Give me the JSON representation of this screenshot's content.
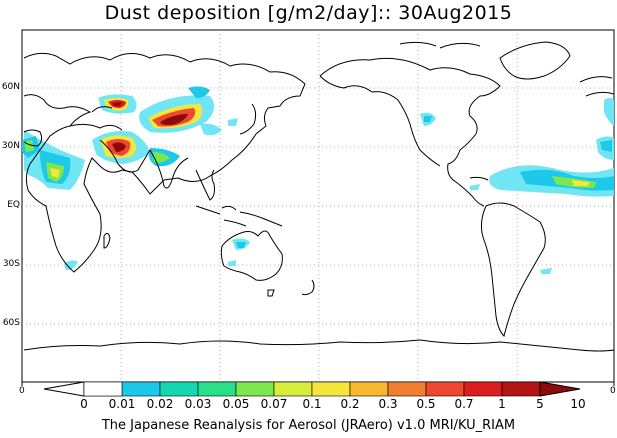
{
  "title": "Dust deposition [g/m2/day]:: 30Aug2015",
  "lat_labels": [
    "60N",
    "30N",
    "EQ",
    "30S",
    "60S"
  ],
  "edge_labels": {
    "left": "0",
    "right": "0"
  },
  "colorbar": {
    "labels": [
      "0",
      "0.01",
      "0.02",
      "0.03",
      "0.05",
      "0.07",
      "0.1",
      "0.2",
      "0.3",
      "0.5",
      "0.7",
      "1",
      "5",
      "10"
    ],
    "colors": [
      "#ffffff",
      "#70e6f5",
      "#1ec8e8",
      "#14d8b0",
      "#28e08a",
      "#7ce84e",
      "#d8ec3c",
      "#f5e63c",
      "#f8b830",
      "#f08030",
      "#ee4830",
      "#dd1e1e",
      "#b41414",
      "#8c0a0a"
    ]
  },
  "footer": "The Japanese Reanalysis for Aerosol (JRAero) v1.0 MRI/KU_RIAM"
}
